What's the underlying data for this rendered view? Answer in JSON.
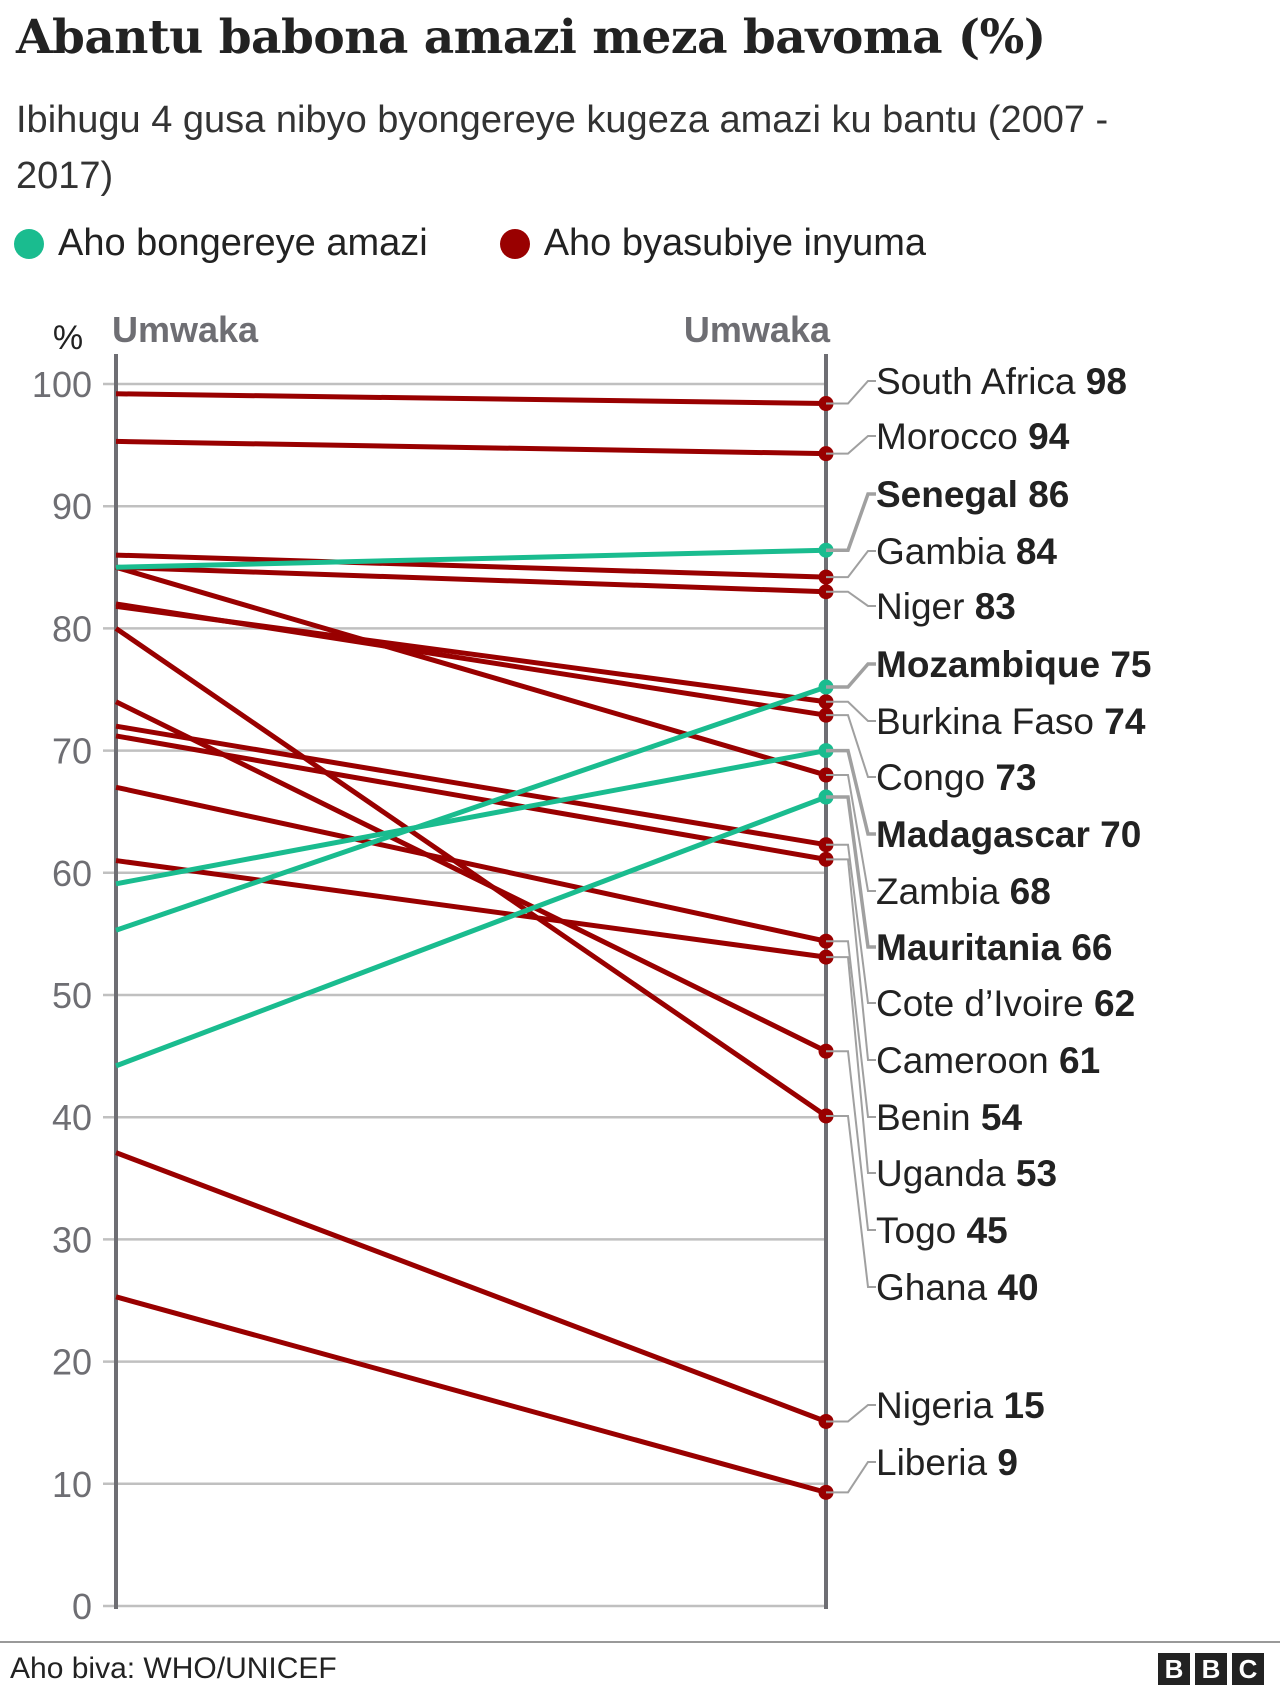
{
  "title": "Abantu babona amazi meza bavoma (%)",
  "subtitle": "Ibihugu 4 gusa nibyo byongereye kugeza amazi ku bantu (2007 - 2017)",
  "legend": [
    {
      "label": "Aho bongereye amazi",
      "color": "#1abc8f"
    },
    {
      "label": "Aho byasubiye inyuma",
      "color": "#990000"
    }
  ],
  "source": "Aho biva: WHO/UNICEF",
  "logo": [
    "B",
    "B",
    "C"
  ],
  "chart_data": {
    "type": "slope",
    "ylabel": "%",
    "x_labels": [
      "Umwaka",
      "Umwaka"
    ],
    "ylim": [
      0,
      100
    ],
    "yticks": [
      0,
      10,
      20,
      30,
      40,
      50,
      60,
      70,
      80,
      90,
      100
    ],
    "grid": true,
    "series": [
      {
        "name": "South Africa",
        "start": 99.2,
        "end": 98.4,
        "label": "98",
        "trend": "down",
        "bold": false
      },
      {
        "name": "Morocco",
        "start": 95.3,
        "end": 94.3,
        "label": "94",
        "trend": "down",
        "bold": false
      },
      {
        "name": "Senegal",
        "start": 85,
        "end": 86.4,
        "label": "86",
        "trend": "up",
        "bold": true
      },
      {
        "name": "Gambia",
        "start": 86,
        "end": 84.2,
        "label": "84",
        "trend": "down",
        "bold": false
      },
      {
        "name": "Niger",
        "start": 85,
        "end": 83,
        "label": "83",
        "trend": "down",
        "bold": false
      },
      {
        "name": "Mozambique",
        "start": 55.3,
        "end": 75.2,
        "label": "75",
        "trend": "up",
        "bold": true
      },
      {
        "name": "Burkina Faso",
        "start": 81.8,
        "end": 74,
        "label": "74",
        "trend": "down",
        "bold": false
      },
      {
        "name": "Congo",
        "start": 82,
        "end": 72.9,
        "label": "73",
        "trend": "down",
        "bold": false
      },
      {
        "name": "Madagascar",
        "start": 59.1,
        "end": 70,
        "label": "70",
        "trend": "up",
        "bold": true
      },
      {
        "name": "Zambia",
        "start": 85,
        "end": 68,
        "label": "68",
        "trend": "down",
        "bold": false
      },
      {
        "name": "Mauritania",
        "start": 44.2,
        "end": 66.2,
        "label": "66",
        "trend": "up",
        "bold": true
      },
      {
        "name": "Cote d’Ivoire",
        "start": 72,
        "end": 62.3,
        "label": "62",
        "trend": "down",
        "bold": false
      },
      {
        "name": "Cameroon",
        "start": 71.2,
        "end": 61.1,
        "label": "61",
        "trend": "down",
        "bold": false
      },
      {
        "name": "Benin",
        "start": 67,
        "end": 54.4,
        "label": "54",
        "trend": "down",
        "bold": false
      },
      {
        "name": "Uganda",
        "start": 61,
        "end": 53.1,
        "label": "53",
        "trend": "down",
        "bold": false
      },
      {
        "name": "Togo",
        "start": 74,
        "end": 45.4,
        "label": "45",
        "trend": "down",
        "bold": false
      },
      {
        "name": "Ghana",
        "start": 80,
        "end": 40.1,
        "label": "40",
        "trend": "down",
        "bold": false
      },
      {
        "name": "Nigeria",
        "start": 37.1,
        "end": 15.1,
        "label": "15",
        "trend": "down",
        "bold": false
      },
      {
        "name": "Liberia",
        "start": 25.3,
        "end": 9.3,
        "label": "9",
        "trend": "down",
        "bold": false
      }
    ],
    "colors": {
      "up": "#1abc8f",
      "down": "#990000",
      "axis": "#6e6e73",
      "grid": "#c0c0c0",
      "leader": "#a0a0a0"
    }
  }
}
